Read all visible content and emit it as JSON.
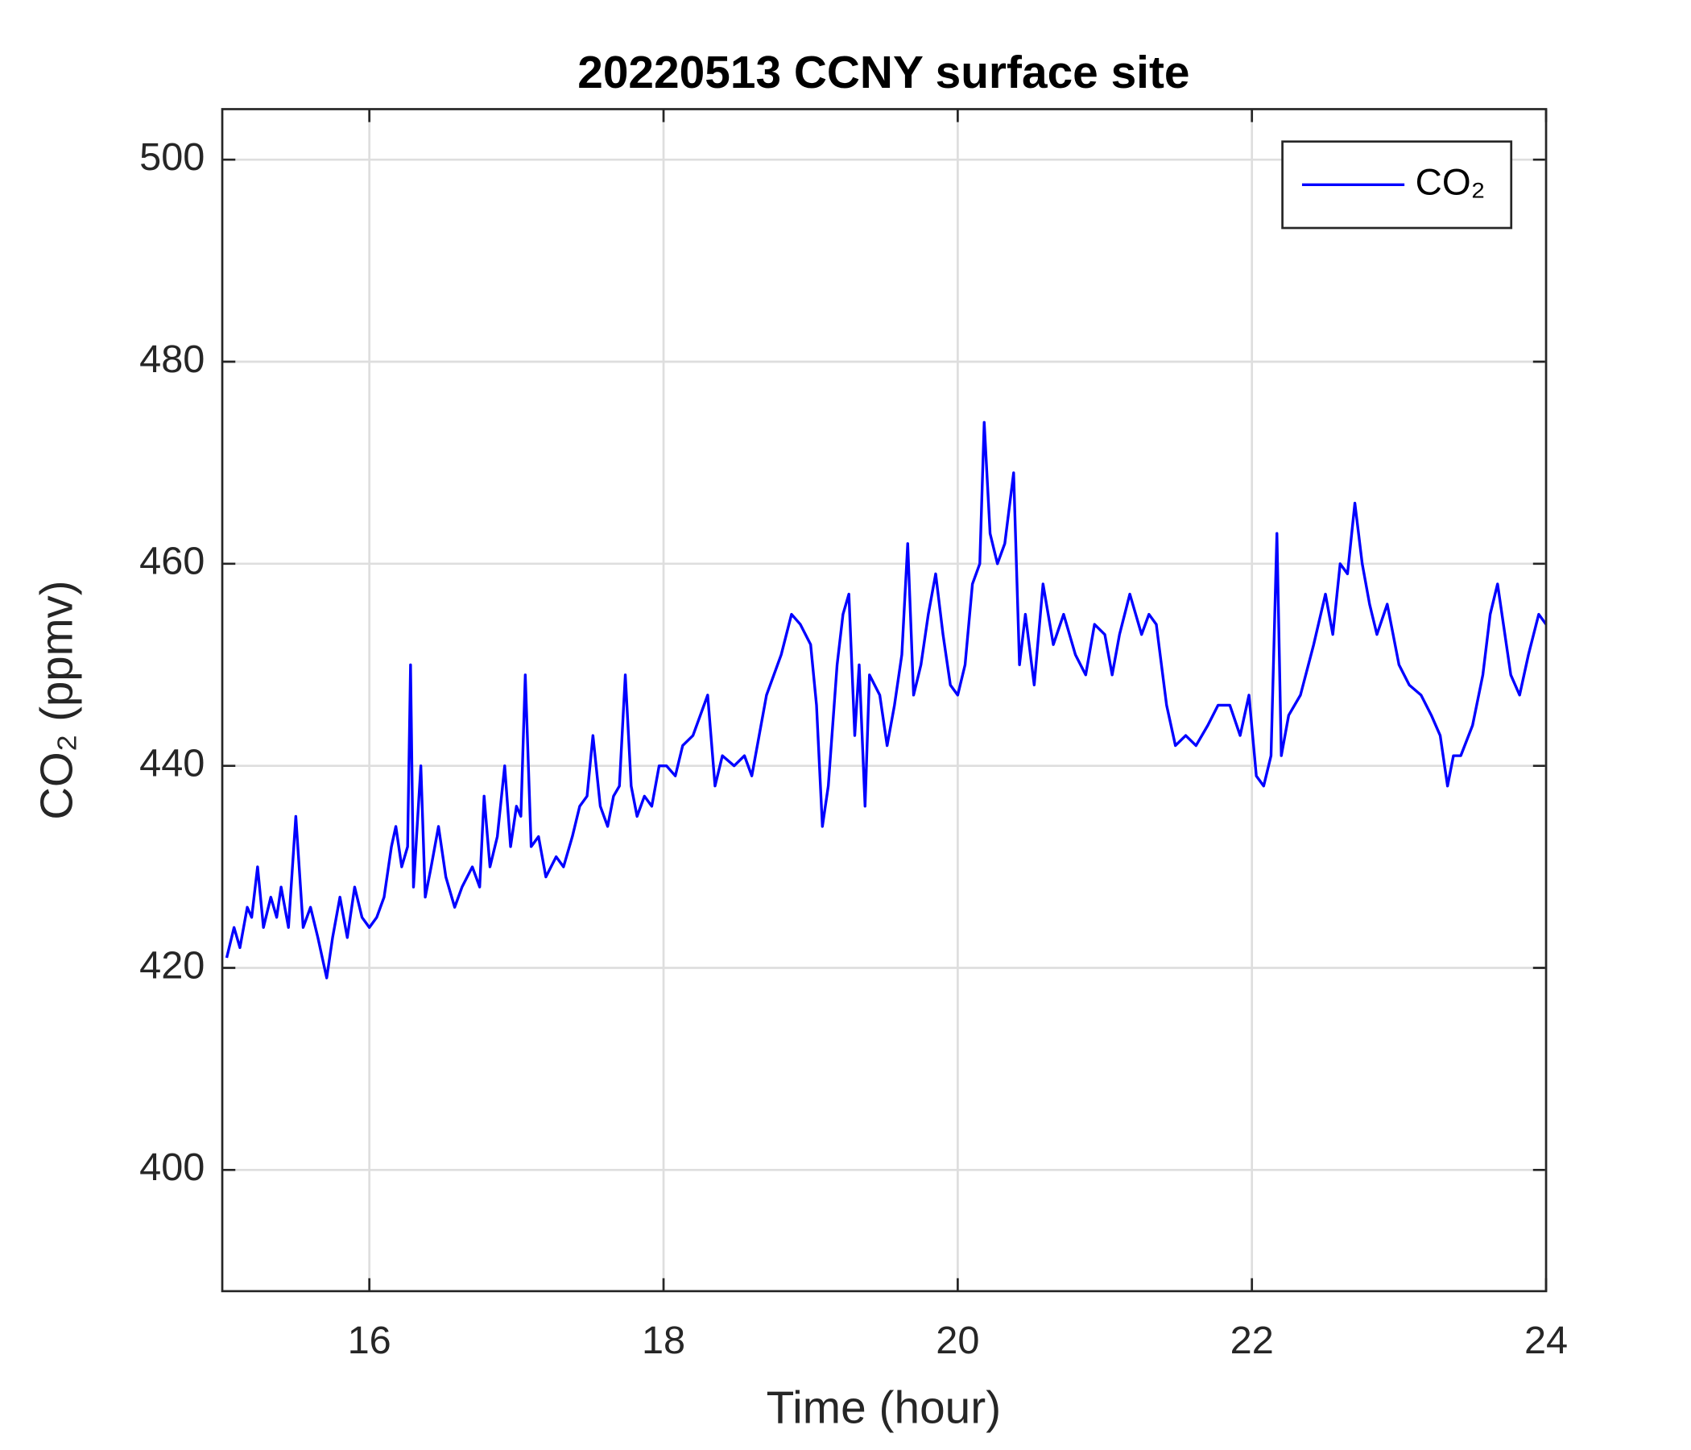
{
  "chart_data": {
    "type": "line",
    "title": "20220513 CCNY surface site",
    "xlabel": "Time (hour)",
    "ylabel": "CO₂ (ppmv)",
    "xlim": [
      15,
      24
    ],
    "xticks": [
      16,
      18,
      20,
      22,
      24
    ],
    "ylim": [
      388,
      505
    ],
    "yticks": [
      400,
      420,
      440,
      460,
      480,
      500
    ],
    "grid": true,
    "legend": "upper right",
    "series": [
      {
        "name": "CO₂",
        "color": "#0000ff",
        "x": [
          15.03,
          15.08,
          15.12,
          15.17,
          15.2,
          15.24,
          15.28,
          15.33,
          15.37,
          15.4,
          15.45,
          15.5,
          15.55,
          15.6,
          15.65,
          15.71,
          15.75,
          15.8,
          15.85,
          15.9,
          15.95,
          16.0,
          16.05,
          16.1,
          16.15,
          16.18,
          16.22,
          16.26,
          16.28,
          16.3,
          16.35,
          16.38,
          16.42,
          16.47,
          16.52,
          16.58,
          16.63,
          16.7,
          16.75,
          16.78,
          16.82,
          16.87,
          16.92,
          16.96,
          17.0,
          17.03,
          17.06,
          17.1,
          17.15,
          17.2,
          17.27,
          17.32,
          17.38,
          17.43,
          17.48,
          17.52,
          17.57,
          17.62,
          17.66,
          17.7,
          17.74,
          17.78,
          17.82,
          17.87,
          17.92,
          17.97,
          18.02,
          18.08,
          18.13,
          18.2,
          18.25,
          18.3,
          18.35,
          18.4,
          18.48,
          18.55,
          18.6,
          18.65,
          18.7,
          18.75,
          18.8,
          18.87,
          18.93,
          19.0,
          19.04,
          19.08,
          19.12,
          19.18,
          19.22,
          19.26,
          19.3,
          19.33,
          19.37,
          19.4,
          19.47,
          19.52,
          19.57,
          19.62,
          19.66,
          19.7,
          19.75,
          19.8,
          19.85,
          19.9,
          19.95,
          20.0,
          20.05,
          20.1,
          20.15,
          20.18,
          20.22,
          20.27,
          20.32,
          20.38,
          20.42,
          20.46,
          20.52,
          20.58,
          20.65,
          20.72,
          20.8,
          20.87,
          20.93,
          21.0,
          21.05,
          21.1,
          21.17,
          21.25,
          21.3,
          21.35,
          21.42,
          21.48,
          21.55,
          21.62,
          21.7,
          21.77,
          21.85,
          21.92,
          21.98,
          22.03,
          22.08,
          22.13,
          22.17,
          22.2,
          22.25,
          22.33,
          22.42,
          22.5,
          22.55,
          22.6,
          22.65,
          22.7,
          22.75,
          22.8,
          22.85,
          22.92,
          23.0,
          23.07,
          23.15,
          23.22,
          23.28,
          23.33,
          23.37,
          23.42,
          23.5,
          23.57,
          23.62,
          23.67,
          23.7,
          23.76,
          23.82,
          23.88,
          23.95,
          24.0
        ],
        "values": [
          421,
          424,
          422,
          426,
          425,
          430,
          424,
          427,
          425,
          428,
          424,
          435,
          424,
          426,
          423,
          419,
          423,
          427,
          423,
          428,
          425,
          424,
          425,
          427,
          432,
          434,
          430,
          432,
          450,
          428,
          440,
          427,
          430,
          434,
          429,
          426,
          428,
          430,
          428,
          437,
          430,
          433,
          440,
          432,
          436,
          435,
          449,
          432,
          433,
          429,
          431,
          430,
          433,
          436,
          437,
          443,
          436,
          434,
          437,
          438,
          449,
          438,
          435,
          437,
          436,
          440,
          440,
          439,
          442,
          443,
          445,
          447,
          438,
          441,
          440,
          441,
          439,
          443,
          447,
          449,
          451,
          455,
          454,
          452,
          446,
          434,
          438,
          450,
          455,
          457,
          443,
          450,
          436,
          449,
          447,
          442,
          446,
          451,
          462,
          447,
          450,
          455,
          459,
          453,
          448,
          447,
          450,
          458,
          460,
          474,
          463,
          460,
          462,
          469,
          450,
          455,
          448,
          458,
          452,
          455,
          451,
          449,
          454,
          453,
          449,
          453,
          457,
          453,
          455,
          454,
          446,
          442,
          443,
          442,
          444,
          446,
          446,
          443,
          447,
          439,
          438,
          441,
          463,
          441,
          445,
          447,
          452,
          457,
          453,
          460,
          459,
          466,
          460,
          456,
          453,
          456,
          450,
          448,
          447,
          445,
          443,
          438,
          441,
          441,
          444,
          449,
          455,
          458,
          455,
          449,
          447,
          451,
          455,
          454
        ]
      }
    ]
  }
}
